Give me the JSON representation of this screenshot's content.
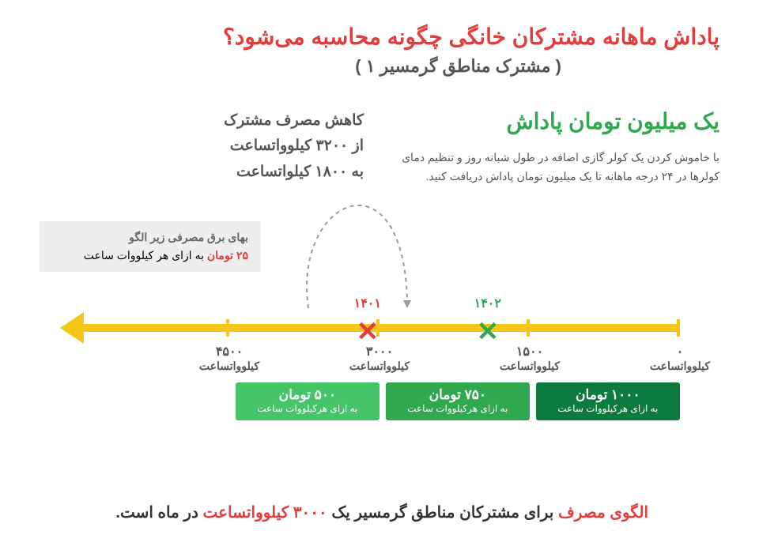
{
  "header": {
    "title": "پاداش ماهانه مشترکان خانگی چگونه محاسبه می‌شود؟",
    "subtitle": "( مشترک مناطق گرمسیر ۱ )"
  },
  "reduction_note": {
    "l1": "کاهش مصرف مشترک",
    "l2": "از ۳۲۰۰ کیلوواتساعت",
    "l3": "به ۱۸۰۰ کیلواتساعت"
  },
  "reward": {
    "title": "یک میلیون تومان پاداش",
    "desc": "با خاموش کردن یک کولر گازی اضافه در طول شبانه روز و تنظیم دمای کولرها در ۲۴ درجه ماهانه تا یک میلیون تومان پاداش دریافت کنید."
  },
  "info_box": {
    "l1": "بهای برق مصرفی زیر الگو",
    "price": "۲۵ تومان",
    "rest": " به ازای هر کیلووات ساعت"
  },
  "axis": {
    "unit": "کیلوواتساعت",
    "ticks": [
      {
        "label": "۰",
        "pos_pct": 0
      },
      {
        "label": "۱۵۰۰",
        "pos_pct": 25
      },
      {
        "label": "۳۰۰۰",
        "pos_pct": 50
      },
      {
        "label": "۴۵۰۰",
        "pos_pct": 75
      }
    ],
    "x_marks": [
      {
        "glyph": "✕",
        "year": "۱۴۰۲",
        "class": "green",
        "pos_pct": 32
      },
      {
        "glyph": "✕",
        "year": "۱۴۰۱",
        "class": "red",
        "pos_pct": 52
      }
    ],
    "bands": [
      {
        "big": "۱۰۰۰ تومان",
        "small": "به ازای هرکیلووات ساعت",
        "color": "#0d7a3e",
        "start_pct": 0,
        "end_pct": 24
      },
      {
        "big": "۷۵۰ تومان",
        "small": "به ازای هرکیلووات ساعت",
        "color": "#2fa84f",
        "start_pct": 25,
        "end_pct": 49
      },
      {
        "big": "۵۰۰ تومان",
        "small": "به ازای هرکیلووات ساعت",
        "color": "#46c46a",
        "start_pct": 50,
        "end_pct": 74
      }
    ]
  },
  "bottom": {
    "p1": "الگوی مصرف",
    "p2": " برای مشترکان مناطق گرمسیر یک ",
    "p3": "۳۰۰۰ کیلوواتساعت",
    "p4": " در ماه است."
  },
  "colors": {
    "yellow": "#f5c518",
    "red": "#e23c3c",
    "green": "#2fa84f",
    "text": "#555555",
    "bg": "#ffffff"
  },
  "curve": {
    "stroke": "#9a9a9a",
    "dash": "4,4"
  }
}
